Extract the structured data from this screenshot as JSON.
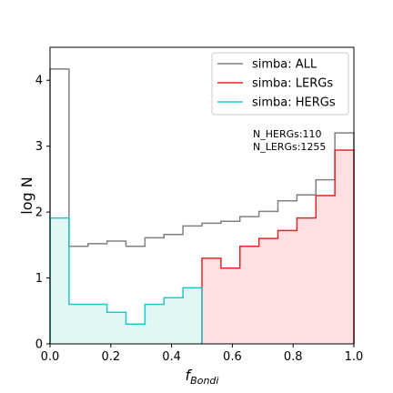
{
  "chart_data": {
    "type": "histogram",
    "xlabel": "f",
    "xlabel_sub": "Bondi",
    "ylabel": "log N",
    "xlim": [
      0,
      1
    ],
    "ylim": [
      0,
      4.5
    ],
    "xticks": [
      "0.0",
      "0.2",
      "0.4",
      "0.6",
      "0.8",
      "1.0"
    ],
    "yticks": [
      "0",
      "1",
      "2",
      "3",
      "4"
    ],
    "bin_edges": [
      0.0,
      0.0625,
      0.125,
      0.1875,
      0.25,
      0.3125,
      0.375,
      0.4375,
      0.5,
      0.5625,
      0.625,
      0.6875,
      0.75,
      0.8125,
      0.875,
      0.9375,
      1.0
    ],
    "series": [
      {
        "name": "simba: ALL",
        "color": "#808080",
        "fill": false,
        "values": [
          4.17,
          1.48,
          1.52,
          1.56,
          1.48,
          1.61,
          1.66,
          1.79,
          1.83,
          1.86,
          1.93,
          2.01,
          2.17,
          2.26,
          2.49,
          3.2
        ]
      },
      {
        "name": "simba: LERGs",
        "color": "#e8262a",
        "fill": true,
        "fill_color": "#fde0e2",
        "start_bin": 8,
        "values": [
          null,
          null,
          null,
          null,
          null,
          null,
          null,
          null,
          1.3,
          1.15,
          1.48,
          1.6,
          1.72,
          1.91,
          2.25,
          2.94
        ]
      },
      {
        "name": "simba: HERGs",
        "color": "#1ec8c8",
        "fill": true,
        "fill_color": "#e0f7f6",
        "values": [
          1.91,
          0.6,
          0.6,
          0.48,
          0.3,
          0.6,
          0.7,
          0.85,
          null,
          null,
          null,
          null,
          null,
          null,
          null,
          null
        ]
      }
    ],
    "annotations": [
      "N_HERGs:110",
      "N_LERGs:1255"
    ],
    "legend_position": "top-right",
    "grid": false
  }
}
